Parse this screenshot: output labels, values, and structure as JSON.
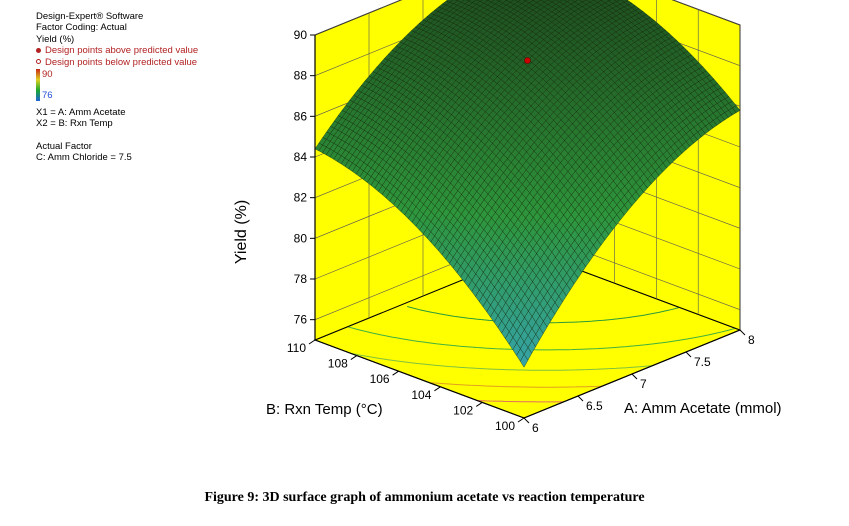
{
  "legend": {
    "software": "Design-Expert® Software",
    "factor_coding": "Factor Coding: Actual",
    "response": "Yield (%)",
    "above": "Design points above predicted value",
    "below": "Design points below predicted value",
    "scale_high": "90",
    "scale_low": "76",
    "x1": "X1 = A: Amm Acetate",
    "x2": "X2 = B: Rxn Temp",
    "actual_factor_title": "Actual Factor",
    "actual_factor": "C: Amm Chloride = 7.5"
  },
  "colors": {
    "floor": "#ffff00",
    "surface_high": "#1e4a1e",
    "surface_low": "#38a8c8",
    "design_point": "#cc0000"
  },
  "chart_data": {
    "type": "surface",
    "x_label": "A: Amm Acetate (mmol)",
    "y_label": "B: Rxn Temp (°C)",
    "z_label": "Yield (%)",
    "x_range": [
      6,
      8
    ],
    "y_range": [
      100,
      110
    ],
    "z_range": [
      75,
      90
    ],
    "x_ticks": [
      "6",
      "6.5",
      "7",
      "7.5",
      "8"
    ],
    "y_ticks": [
      "100",
      "102",
      "104",
      "106",
      "108",
      "110"
    ],
    "z_ticks": [
      "76",
      "78",
      "80",
      "82",
      "84",
      "86",
      "88",
      "90"
    ],
    "corner_values": [
      {
        "x": 6,
        "y": 100,
        "z": 77.5
      },
      {
        "x": 8,
        "y": 100,
        "z": 85.8
      },
      {
        "x": 6,
        "y": 110,
        "z": 84.4
      },
      {
        "x": 8,
        "y": 110,
        "z": 89.5
      }
    ],
    "design_points": [
      {
        "x": 7,
        "y": 105,
        "z": 88.5,
        "position": "above"
      }
    ]
  },
  "caption": "Figure 9: 3D surface graph of ammonium acetate vs reaction temperature"
}
